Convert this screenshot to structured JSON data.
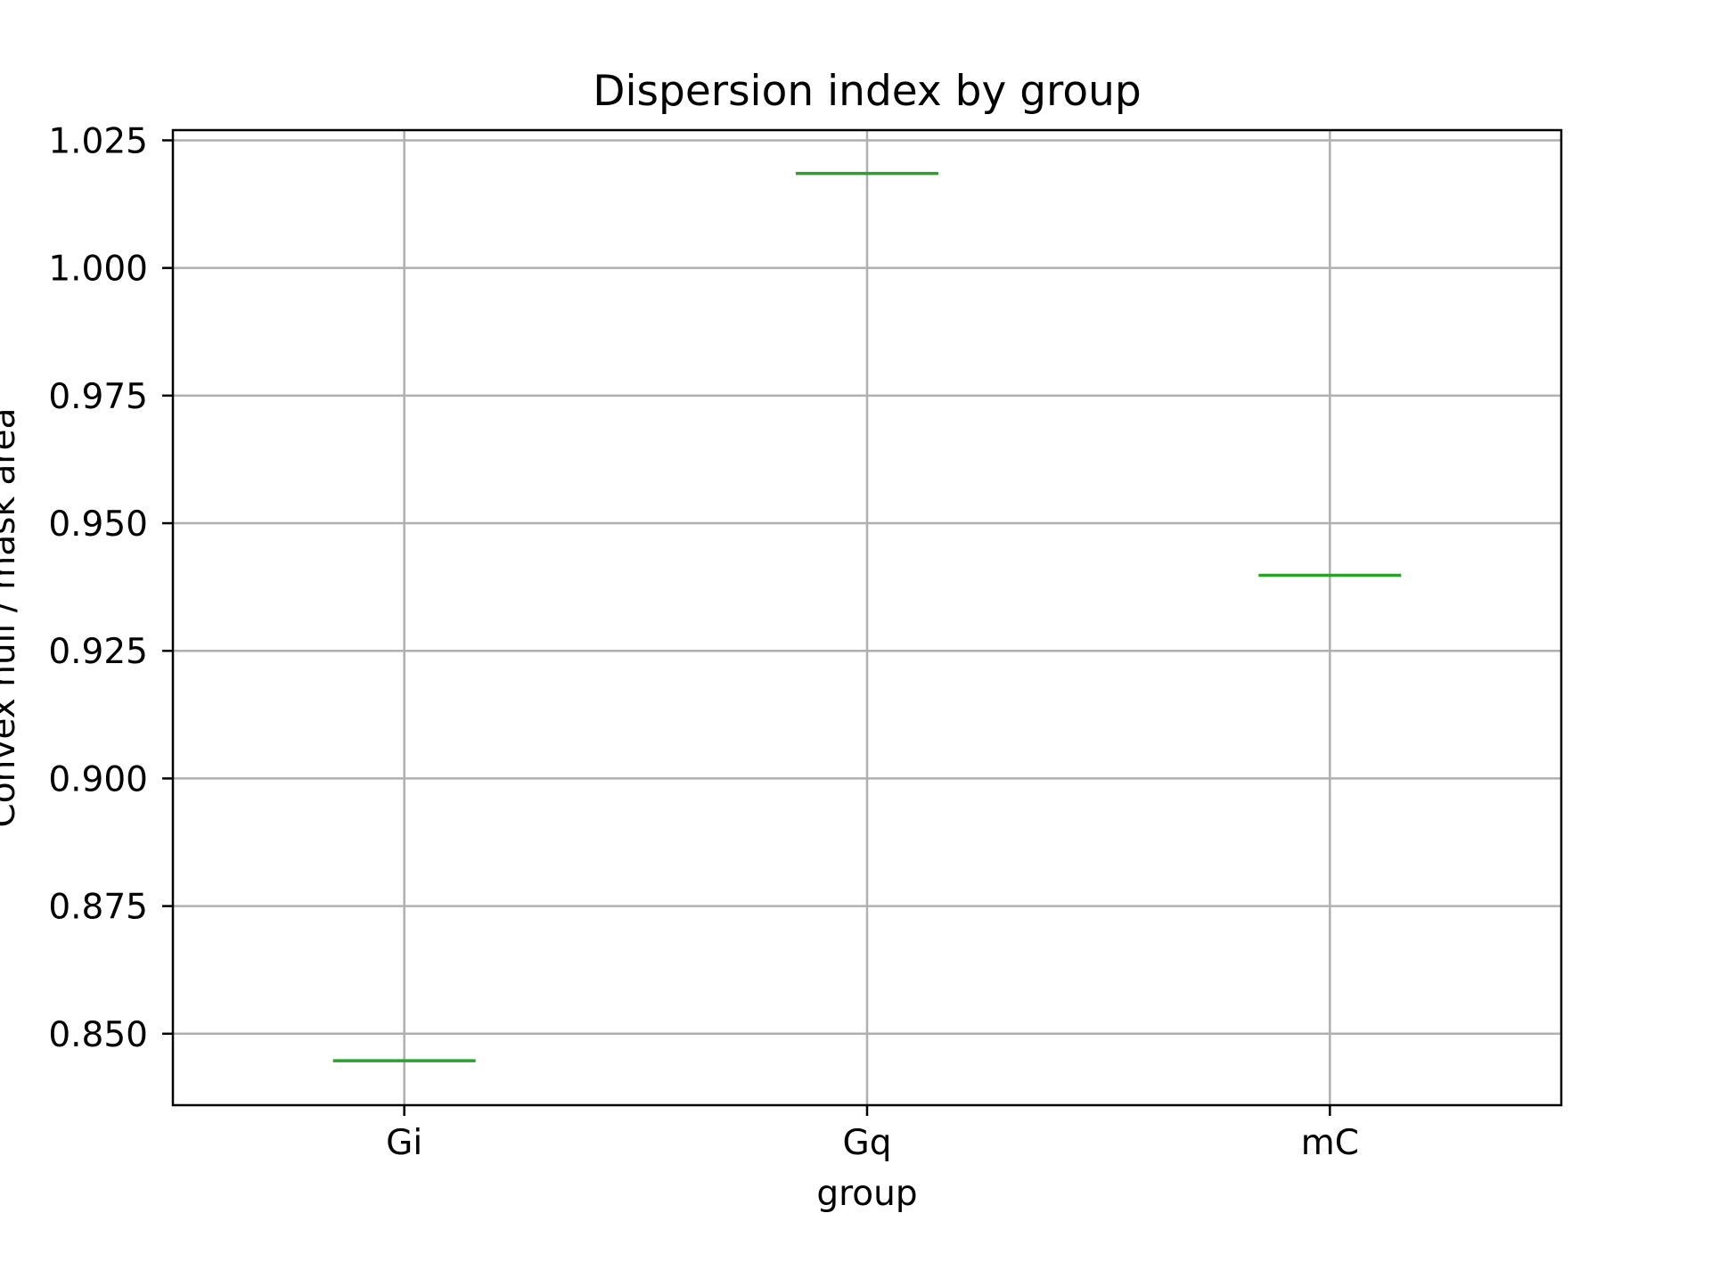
{
  "chart_data": {
    "type": "box",
    "title": "Dispersion index by group",
    "xlabel": "group",
    "ylabel": "Convex hull / mask area",
    "categories": [
      "Gi",
      "Gq",
      "mC"
    ],
    "values": [
      0.8447,
      1.0185,
      0.9398
    ],
    "ylim": [
      0.836,
      1.027
    ],
    "yticks": [
      0.85,
      0.875,
      0.9,
      0.925,
      0.95,
      0.975,
      1.0,
      1.025
    ],
    "ytick_labels": [
      "0.850",
      "0.875",
      "0.900",
      "0.925",
      "0.950",
      "0.975",
      "1.000",
      "1.025"
    ],
    "grid": true,
    "colors": {
      "median": "#2ca02c",
      "grid": "#b0b0b0",
      "axes": "#000000"
    }
  }
}
